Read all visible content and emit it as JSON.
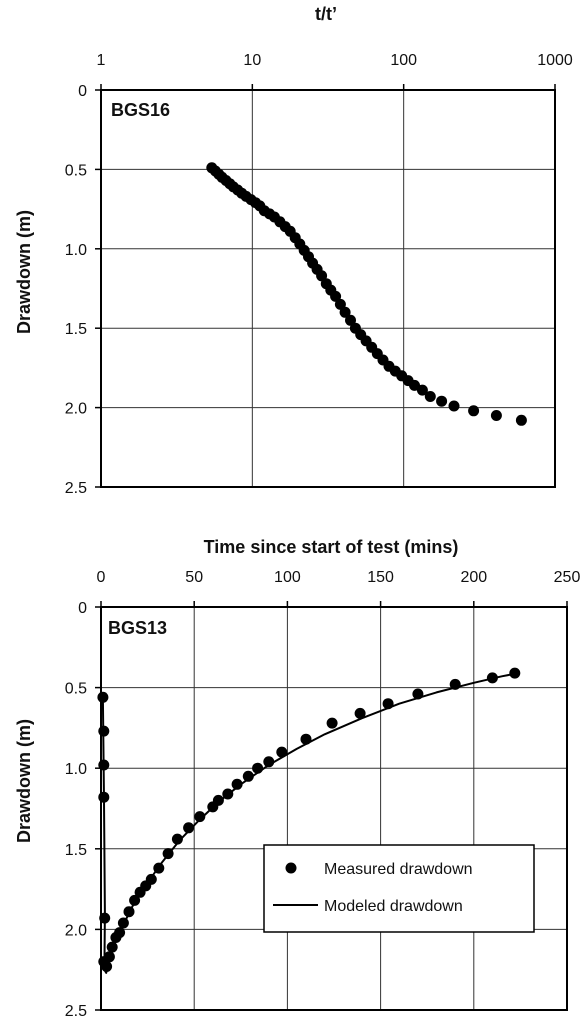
{
  "chart_data": [
    {
      "type": "scatter",
      "panel_label": "BGS16",
      "xlabel": "t/t’",
      "ylabel": "Drawdown (m)",
      "x_scale": "log",
      "x_axis_position": "top",
      "y_inverted": true,
      "xlim": [
        1,
        1000
      ],
      "ylim": [
        0,
        2.5
      ],
      "x_ticks": [
        1,
        10,
        100,
        1000
      ],
      "x_tick_labels": [
        "1",
        "10",
        "100",
        "1000"
      ],
      "y_ticks": [
        0,
        0.5,
        1.0,
        1.5,
        2.0,
        2.5
      ],
      "y_tick_labels": [
        "0",
        "0.5",
        "1.0",
        "1.5",
        "2.0",
        "2.5"
      ],
      "grid": true,
      "series": [
        {
          "marker": "filled-circle",
          "color": "#000000",
          "points": [
            [
              5.4,
              0.49
            ],
            [
              5.7,
              0.51
            ],
            [
              6.0,
              0.53
            ],
            [
              6.3,
              0.55
            ],
            [
              6.7,
              0.57
            ],
            [
              7.1,
              0.59
            ],
            [
              7.5,
              0.61
            ],
            [
              8.0,
              0.63
            ],
            [
              8.5,
              0.65
            ],
            [
              9.1,
              0.67
            ],
            [
              9.8,
              0.69
            ],
            [
              10.5,
              0.71
            ],
            [
              11.2,
              0.73
            ],
            [
              12.0,
              0.76
            ],
            [
              13.0,
              0.78
            ],
            [
              14.0,
              0.8
            ],
            [
              15.2,
              0.83
            ],
            [
              16.5,
              0.86
            ],
            [
              17.8,
              0.89
            ],
            [
              19.2,
              0.93
            ],
            [
              20.6,
              0.97
            ],
            [
              22.0,
              1.01
            ],
            [
              23.5,
              1.05
            ],
            [
              25.0,
              1.09
            ],
            [
              26.8,
              1.13
            ],
            [
              28.7,
              1.17
            ],
            [
              30.8,
              1.22
            ],
            [
              33.0,
              1.26
            ],
            [
              35.5,
              1.3
            ],
            [
              38.2,
              1.35
            ],
            [
              41.0,
              1.4
            ],
            [
              44.5,
              1.45
            ],
            [
              48.0,
              1.5
            ],
            [
              52.0,
              1.54
            ],
            [
              56.5,
              1.58
            ],
            [
              61.5,
              1.62
            ],
            [
              67.0,
              1.66
            ],
            [
              73.0,
              1.7
            ],
            [
              80.0,
              1.74
            ],
            [
              88.0,
              1.77
            ],
            [
              97.0,
              1.8
            ],
            [
              107.0,
              1.83
            ],
            [
              118.0,
              1.86
            ],
            [
              133.0,
              1.89
            ],
            [
              150.0,
              1.93
            ],
            [
              178.0,
              1.96
            ],
            [
              215.0,
              1.99
            ],
            [
              290.0,
              2.02
            ],
            [
              410.0,
              2.05
            ],
            [
              600.0,
              2.08
            ]
          ]
        }
      ]
    },
    {
      "type": "scatter",
      "panel_label": "BGS13",
      "xlabel": "Time since start of test (mins)",
      "ylabel": "Drawdown (m)",
      "x_axis_position": "top",
      "y_inverted": true,
      "xlim": [
        0,
        250
      ],
      "ylim": [
        0,
        2.5
      ],
      "x_ticks": [
        0,
        50,
        100,
        150,
        200,
        250
      ],
      "x_tick_labels": [
        "0",
        "50",
        "100",
        "150",
        "200",
        "250"
      ],
      "y_ticks": [
        0,
        0.5,
        1.0,
        1.5,
        2.0,
        2.5
      ],
      "y_tick_labels": [
        "0",
        "0.5",
        "1.0",
        "1.5",
        "2.0",
        "2.5"
      ],
      "grid": true,
      "legend": {
        "placement": "bottom-right",
        "entries": [
          "Measured drawdown",
          "Modeled drawdown"
        ]
      },
      "series": [
        {
          "name": "Measured drawdown",
          "marker": "filled-circle",
          "color": "#000000",
          "points": [
            [
              1.0,
              0.56
            ],
            [
              1.5,
              0.77
            ],
            [
              1.5,
              0.98
            ],
            [
              1.5,
              1.18
            ],
            [
              2.0,
              1.93
            ],
            [
              1.5,
              2.2
            ],
            [
              3.0,
              2.23
            ],
            [
              4.5,
              2.17
            ],
            [
              6.0,
              2.11
            ],
            [
              8.0,
              2.05
            ],
            [
              10.0,
              2.02
            ],
            [
              12.0,
              1.96
            ],
            [
              15.0,
              1.89
            ],
            [
              18.0,
              1.82
            ],
            [
              21.0,
              1.77
            ],
            [
              24.0,
              1.73
            ],
            [
              27.0,
              1.69
            ],
            [
              31.0,
              1.62
            ],
            [
              36.0,
              1.53
            ],
            [
              41.0,
              1.44
            ],
            [
              47.0,
              1.37
            ],
            [
              53.0,
              1.3
            ],
            [
              60.0,
              1.24
            ],
            [
              63.0,
              1.2
            ],
            [
              68.0,
              1.16
            ],
            [
              73.0,
              1.1
            ],
            [
              79.0,
              1.05
            ],
            [
              84.0,
              1.0
            ],
            [
              90.0,
              0.96
            ],
            [
              97.0,
              0.9
            ],
            [
              110.0,
              0.82
            ],
            [
              124.0,
              0.72
            ],
            [
              139.0,
              0.66
            ],
            [
              154.0,
              0.6
            ],
            [
              170.0,
              0.54
            ],
            [
              190.0,
              0.48
            ],
            [
              210.0,
              0.44
            ],
            [
              222.0,
              0.41
            ]
          ]
        },
        {
          "name": "Modeled drawdown",
          "line": "solid",
          "color": "#000000",
          "points": [
            [
              1.0,
              0.57
            ],
            [
              1.6,
              1.2
            ],
            [
              2.1,
              1.9
            ],
            [
              1.8,
              2.25
            ],
            [
              2.8,
              2.27
            ],
            [
              5.0,
              2.16
            ],
            [
              8.0,
              2.07
            ],
            [
              12.0,
              1.97
            ],
            [
              18.0,
              1.83
            ],
            [
              25.0,
              1.71
            ],
            [
              33.0,
              1.58
            ],
            [
              42.0,
              1.45
            ],
            [
              52.0,
              1.33
            ],
            [
              63.0,
              1.21
            ],
            [
              75.0,
              1.1
            ],
            [
              90.0,
              0.98
            ],
            [
              105.0,
              0.88
            ],
            [
              120.0,
              0.79
            ],
            [
              140.0,
              0.69
            ],
            [
              160.0,
              0.6
            ],
            [
              180.0,
              0.53
            ],
            [
              200.0,
              0.47
            ],
            [
              215.0,
              0.43
            ],
            [
              224.0,
              0.41
            ]
          ]
        }
      ]
    }
  ]
}
